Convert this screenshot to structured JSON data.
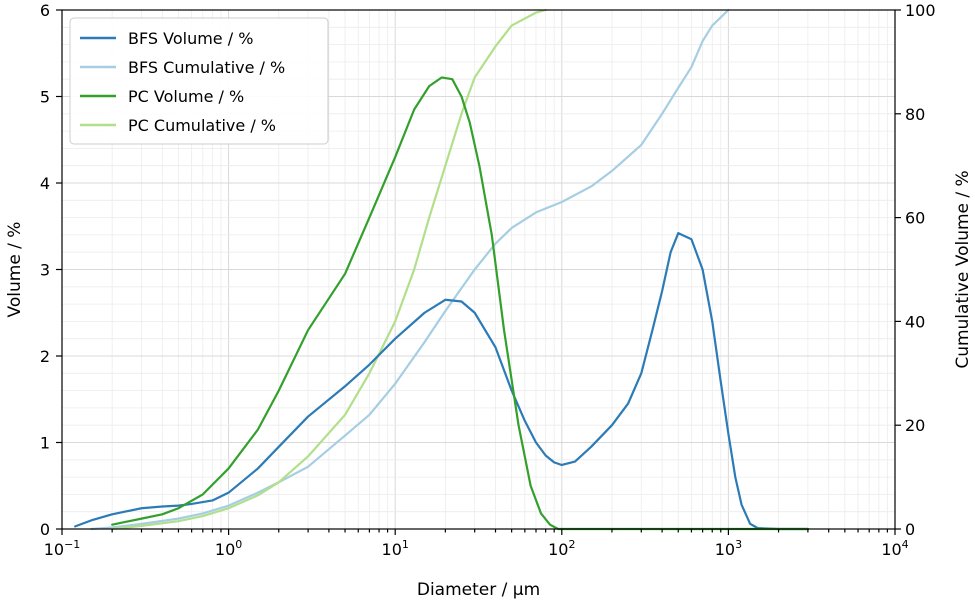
{
  "chart_data": {
    "type": "line",
    "xlabel": "Diameter / μm",
    "ylabel": "Volume / %",
    "y2label": "Cumulative Volume / %",
    "xscale": "log",
    "xlim": [
      0.1,
      10000
    ],
    "ylim": [
      0,
      6
    ],
    "y2lim": [
      0,
      100
    ],
    "x_ticks": [
      {
        "value": 0.1,
        "base": "10",
        "exp": "−1"
      },
      {
        "value": 1,
        "base": "10",
        "exp": "0"
      },
      {
        "value": 10,
        "base": "10",
        "exp": "1"
      },
      {
        "value": 100,
        "base": "10",
        "exp": "2"
      },
      {
        "value": 1000,
        "base": "10",
        "exp": "3"
      },
      {
        "value": 10000,
        "base": "10",
        "exp": "4"
      }
    ],
    "y_ticks": [
      "0",
      "1",
      "2",
      "3",
      "4",
      "5",
      "6"
    ],
    "y2_ticks": [
      "0",
      "20",
      "40",
      "60",
      "80",
      "100"
    ],
    "grid": true,
    "legend_position": "top-left",
    "series": [
      {
        "name": "BFS Volume / %",
        "axis": "left",
        "color": "#2c7bb6",
        "points": [
          [
            0.12,
            0.03
          ],
          [
            0.15,
            0.1
          ],
          [
            0.2,
            0.17
          ],
          [
            0.3,
            0.24
          ],
          [
            0.4,
            0.26
          ],
          [
            0.5,
            0.27
          ],
          [
            0.6,
            0.29
          ],
          [
            0.8,
            0.33
          ],
          [
            1,
            0.42
          ],
          [
            1.5,
            0.7
          ],
          [
            2,
            0.95
          ],
          [
            3,
            1.3
          ],
          [
            5,
            1.65
          ],
          [
            7,
            1.9
          ],
          [
            10,
            2.2
          ],
          [
            15,
            2.5
          ],
          [
            20,
            2.65
          ],
          [
            25,
            2.63
          ],
          [
            30,
            2.5
          ],
          [
            40,
            2.1
          ],
          [
            50,
            1.6
          ],
          [
            60,
            1.25
          ],
          [
            70,
            1.0
          ],
          [
            80,
            0.85
          ],
          [
            90,
            0.77
          ],
          [
            100,
            0.74
          ],
          [
            120,
            0.78
          ],
          [
            150,
            0.95
          ],
          [
            200,
            1.2
          ],
          [
            250,
            1.45
          ],
          [
            300,
            1.8
          ],
          [
            350,
            2.3
          ],
          [
            400,
            2.75
          ],
          [
            450,
            3.2
          ],
          [
            500,
            3.42
          ],
          [
            600,
            3.35
          ],
          [
            700,
            3.0
          ],
          [
            800,
            2.4
          ],
          [
            900,
            1.7
          ],
          [
            1000,
            1.1
          ],
          [
            1100,
            0.6
          ],
          [
            1200,
            0.28
          ],
          [
            1350,
            0.06
          ],
          [
            1500,
            0.01
          ],
          [
            2000,
            0.0
          ],
          [
            3000,
            0.0
          ]
        ]
      },
      {
        "name": "BFS Cumulative / %",
        "axis": "right",
        "color": "#a6cee3",
        "points": [
          [
            0.15,
            0.0
          ],
          [
            0.2,
            0.3
          ],
          [
            0.3,
            1.0
          ],
          [
            0.5,
            2.0
          ],
          [
            0.7,
            3.0
          ],
          [
            1,
            4.5
          ],
          [
            1.5,
            7
          ],
          [
            2,
            9
          ],
          [
            3,
            12
          ],
          [
            5,
            18
          ],
          [
            7,
            22
          ],
          [
            10,
            28
          ],
          [
            15,
            36
          ],
          [
            20,
            42
          ],
          [
            30,
            50
          ],
          [
            40,
            55
          ],
          [
            50,
            58
          ],
          [
            70,
            61
          ],
          [
            100,
            63
          ],
          [
            150,
            66
          ],
          [
            200,
            69
          ],
          [
            300,
            74
          ],
          [
            400,
            80
          ],
          [
            500,
            85
          ],
          [
            600,
            89
          ],
          [
            700,
            94
          ],
          [
            800,
            97
          ],
          [
            1000,
            100
          ]
        ]
      },
      {
        "name": "PC Volume / %",
        "axis": "left",
        "color": "#33a02c",
        "points": [
          [
            0.2,
            0.05
          ],
          [
            0.3,
            0.12
          ],
          [
            0.4,
            0.17
          ],
          [
            0.5,
            0.24
          ],
          [
            0.7,
            0.4
          ],
          [
            1,
            0.7
          ],
          [
            1.5,
            1.15
          ],
          [
            2,
            1.6
          ],
          [
            3,
            2.3
          ],
          [
            5,
            2.95
          ],
          [
            7,
            3.6
          ],
          [
            10,
            4.3
          ],
          [
            13,
            4.85
          ],
          [
            16,
            5.12
          ],
          [
            19,
            5.22
          ],
          [
            22,
            5.2
          ],
          [
            25,
            5.0
          ],
          [
            28,
            4.7
          ],
          [
            32,
            4.2
          ],
          [
            38,
            3.4
          ],
          [
            45,
            2.3
          ],
          [
            55,
            1.2
          ],
          [
            65,
            0.5
          ],
          [
            75,
            0.18
          ],
          [
            85,
            0.05
          ],
          [
            95,
            0.0
          ],
          [
            200,
            0.0
          ],
          [
            1000,
            0.0
          ],
          [
            3000,
            0.0
          ]
        ]
      },
      {
        "name": "PC Cumulative / %",
        "axis": "right",
        "color": "#b2df8a",
        "points": [
          [
            0.2,
            0.0
          ],
          [
            0.3,
            0.6
          ],
          [
            0.5,
            1.5
          ],
          [
            0.7,
            2.5
          ],
          [
            1,
            4.0
          ],
          [
            1.5,
            6.5
          ],
          [
            2,
            9
          ],
          [
            3,
            14
          ],
          [
            5,
            22
          ],
          [
            7,
            30
          ],
          [
            10,
            40
          ],
          [
            13,
            50
          ],
          [
            16,
            60
          ],
          [
            20,
            70
          ],
          [
            25,
            80
          ],
          [
            30,
            87
          ],
          [
            40,
            93
          ],
          [
            50,
            97
          ],
          [
            70,
            99.5
          ],
          [
            80,
            100
          ]
        ]
      }
    ]
  }
}
